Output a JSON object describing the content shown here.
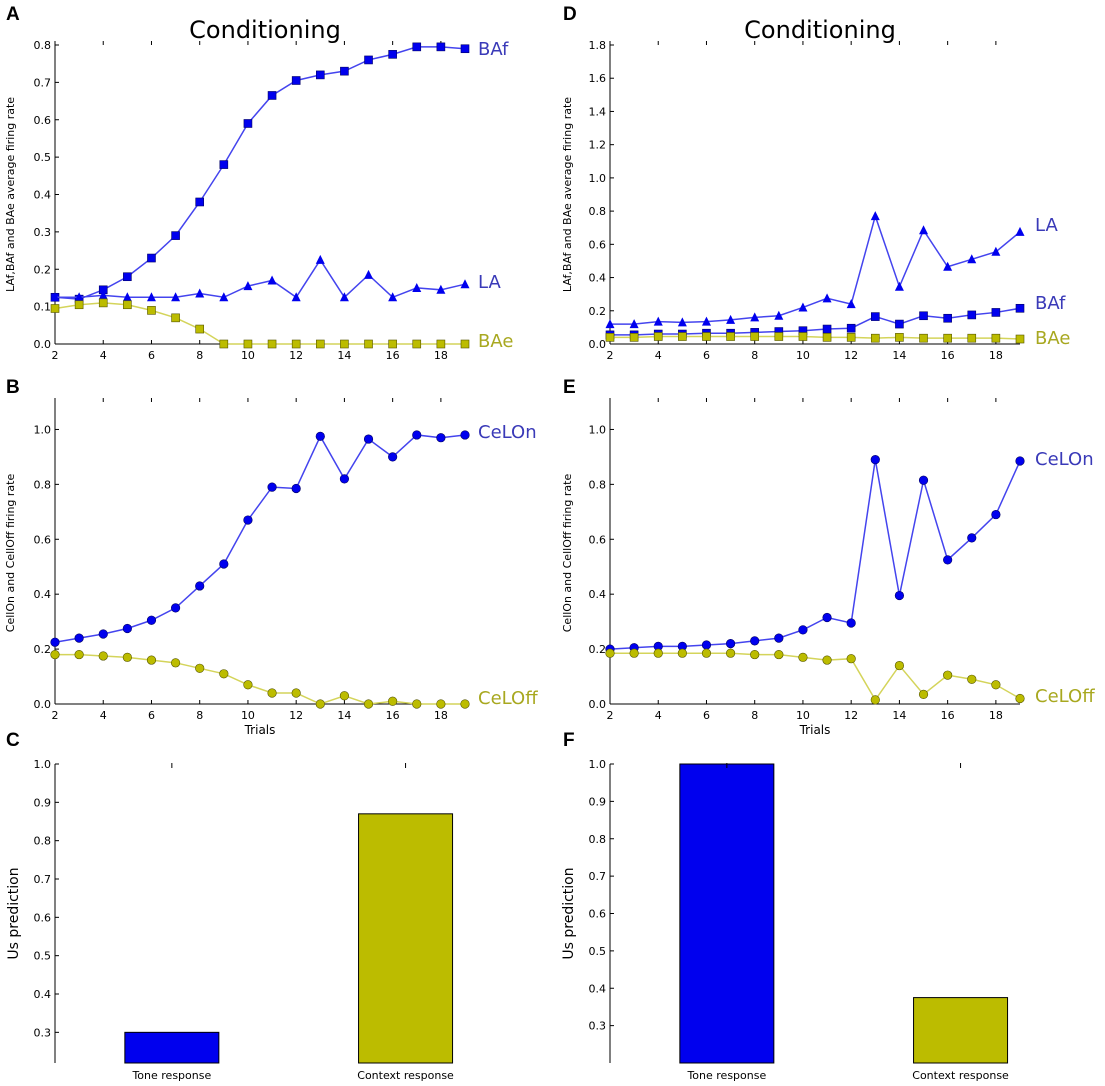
{
  "colors": {
    "blue": "#0000ee",
    "blue_line": "#4444ee",
    "olive": "#bcbc00",
    "olive_line": "#d4d45a",
    "label_blue": "#3a3ab8",
    "label_olive": "#a8a820"
  },
  "chart_data": [
    {
      "id": "A",
      "type": "line",
      "panel_letter": "A",
      "title": "Conditioning",
      "ylabel": "LAf,BAf and BAe average firing rate",
      "xlabel": "",
      "xlim": [
        2,
        19
      ],
      "ylim": [
        0,
        0.8
      ],
      "xticks": [
        2,
        4,
        6,
        8,
        10,
        12,
        14,
        16,
        18
      ],
      "yticks": [
        "0.0",
        "0.1",
        "0.2",
        "0.3",
        "0.4",
        "0.5",
        "0.6",
        "0.7",
        "0.8"
      ],
      "x": [
        2,
        3,
        4,
        5,
        6,
        7,
        8,
        9,
        10,
        11,
        12,
        13,
        14,
        15,
        16,
        17,
        18,
        19
      ],
      "series": [
        {
          "name": "BAf",
          "color": "blue",
          "marker": "square",
          "values": [
            0.125,
            0.12,
            0.145,
            0.18,
            0.23,
            0.29,
            0.38,
            0.48,
            0.59,
            0.665,
            0.705,
            0.72,
            0.73,
            0.76,
            0.775,
            0.795,
            0.795,
            0.79
          ]
        },
        {
          "name": "LA",
          "color": "blue",
          "marker": "triangle",
          "values": [
            0.125,
            0.125,
            0.13,
            0.125,
            0.125,
            0.125,
            0.135,
            0.125,
            0.155,
            0.17,
            0.125,
            0.225,
            0.125,
            0.185,
            0.125,
            0.15,
            0.145,
            0.16
          ]
        },
        {
          "name": "BAe",
          "color": "olive",
          "marker": "square",
          "values": [
            0.095,
            0.105,
            0.11,
            0.105,
            0.09,
            0.07,
            0.04,
            0.0,
            0.0,
            0.0,
            0.0,
            0.0,
            0.0,
            0.0,
            0.0,
            0.0,
            0.0,
            0.0
          ]
        }
      ]
    },
    {
      "id": "B",
      "type": "line",
      "panel_letter": "B",
      "title": "",
      "ylabel": "CellOn and CellOff firing rate",
      "xlabel": "Trials",
      "xlim": [
        2,
        19
      ],
      "ylim": [
        0,
        1.1
      ],
      "xticks": [
        2,
        4,
        6,
        8,
        10,
        12,
        14,
        16,
        18
      ],
      "yticks": [
        "0.0",
        "0.2",
        "0.4",
        "0.6",
        "0.8",
        "1.0"
      ],
      "x": [
        2,
        3,
        4,
        5,
        6,
        7,
        8,
        9,
        10,
        11,
        12,
        13,
        14,
        15,
        16,
        17,
        18,
        19
      ],
      "series": [
        {
          "name": "CeLOn",
          "color": "blue",
          "marker": "circle",
          "values": [
            0.225,
            0.24,
            0.255,
            0.275,
            0.305,
            0.35,
            0.43,
            0.51,
            0.67,
            0.79,
            0.785,
            0.975,
            0.82,
            0.965,
            0.9,
            0.98,
            0.97,
            0.98
          ]
        },
        {
          "name": "CeLOff",
          "color": "olive",
          "marker": "circle",
          "values": [
            0.18,
            0.18,
            0.175,
            0.17,
            0.16,
            0.15,
            0.13,
            0.11,
            0.07,
            0.04,
            0.04,
            0.0,
            0.03,
            0.0,
            0.01,
            0.0,
            0.0,
            0.0
          ]
        }
      ]
    },
    {
      "id": "C",
      "type": "bar",
      "panel_letter": "C",
      "title": "",
      "ylabel": "Us prediction",
      "ylim": [
        0.22,
        1.0
      ],
      "yticks": [
        "0.3",
        "0.4",
        "0.5",
        "0.6",
        "0.7",
        "0.8",
        "0.9",
        "1.0"
      ],
      "categories": [
        "Tone response",
        "Context response"
      ],
      "values": [
        0.3,
        0.87
      ],
      "bar_colors": [
        "blue",
        "olive"
      ]
    },
    {
      "id": "D",
      "type": "line",
      "panel_letter": "D",
      "title": "Conditioning",
      "ylabel": "LAf,BAf and BAe average firing rate",
      "xlabel": "",
      "xlim": [
        2,
        19
      ],
      "ylim": [
        0,
        1.8
      ],
      "xticks": [
        2,
        4,
        6,
        8,
        10,
        12,
        14,
        16,
        18
      ],
      "yticks": [
        "0.0",
        "0.2",
        "0.4",
        "0.6",
        "0.8",
        "1.0",
        "1.2",
        "1.4",
        "1.6",
        "1.8"
      ],
      "x": [
        2,
        3,
        4,
        5,
        6,
        7,
        8,
        9,
        10,
        11,
        12,
        13,
        14,
        15,
        16,
        17,
        18,
        19
      ],
      "series": [
        {
          "name": "LA",
          "color": "blue",
          "marker": "triangle",
          "values": [
            0.12,
            0.12,
            0.135,
            0.13,
            0.135,
            0.145,
            0.16,
            0.17,
            0.22,
            0.275,
            0.24,
            0.77,
            0.345,
            0.685,
            0.465,
            0.51,
            0.555,
            0.675
          ]
        },
        {
          "name": "BAf",
          "color": "blue",
          "marker": "square",
          "values": [
            0.055,
            0.055,
            0.06,
            0.06,
            0.065,
            0.065,
            0.07,
            0.075,
            0.08,
            0.09,
            0.095,
            0.165,
            0.12,
            0.17,
            0.155,
            0.175,
            0.19,
            0.215
          ]
        },
        {
          "name": "BAe",
          "color": "olive",
          "marker": "square",
          "values": [
            0.04,
            0.04,
            0.045,
            0.045,
            0.045,
            0.045,
            0.045,
            0.045,
            0.045,
            0.04,
            0.04,
            0.035,
            0.04,
            0.035,
            0.035,
            0.035,
            0.035,
            0.03
          ]
        }
      ]
    },
    {
      "id": "E",
      "type": "line",
      "panel_letter": "E",
      "title": "",
      "ylabel": "CellOn and CellOff firing rate",
      "xlabel": "Trials",
      "xlim": [
        2,
        19
      ],
      "ylim": [
        0,
        1.1
      ],
      "xticks": [
        2,
        4,
        6,
        8,
        10,
        12,
        14,
        16,
        18
      ],
      "yticks": [
        "0.0",
        "0.2",
        "0.4",
        "0.6",
        "0.8",
        "1.0"
      ],
      "x": [
        2,
        3,
        4,
        5,
        6,
        7,
        8,
        9,
        10,
        11,
        12,
        13,
        14,
        15,
        16,
        17,
        18,
        19
      ],
      "series": [
        {
          "name": "CeLOn",
          "color": "blue",
          "marker": "circle",
          "values": [
            0.2,
            0.205,
            0.21,
            0.21,
            0.215,
            0.22,
            0.23,
            0.24,
            0.27,
            0.315,
            0.295,
            0.89,
            0.395,
            0.815,
            0.525,
            0.605,
            0.69,
            0.885
          ]
        },
        {
          "name": "CeLOff",
          "color": "olive",
          "marker": "circle",
          "values": [
            0.185,
            0.185,
            0.185,
            0.185,
            0.185,
            0.185,
            0.18,
            0.18,
            0.17,
            0.16,
            0.165,
            0.015,
            0.14,
            0.035,
            0.105,
            0.09,
            0.07,
            0.02
          ]
        }
      ]
    },
    {
      "id": "F",
      "type": "bar",
      "panel_letter": "F",
      "title": "",
      "ylabel": "Us prediction",
      "ylim": [
        0.2,
        1.0
      ],
      "yticks": [
        "0.3",
        "0.4",
        "0.5",
        "0.6",
        "0.7",
        "0.8",
        "0.9",
        "1.0"
      ],
      "categories": [
        "Tone response",
        "Context response"
      ],
      "values": [
        1.0,
        0.375
      ],
      "bar_colors": [
        "blue",
        "olive"
      ]
    }
  ]
}
